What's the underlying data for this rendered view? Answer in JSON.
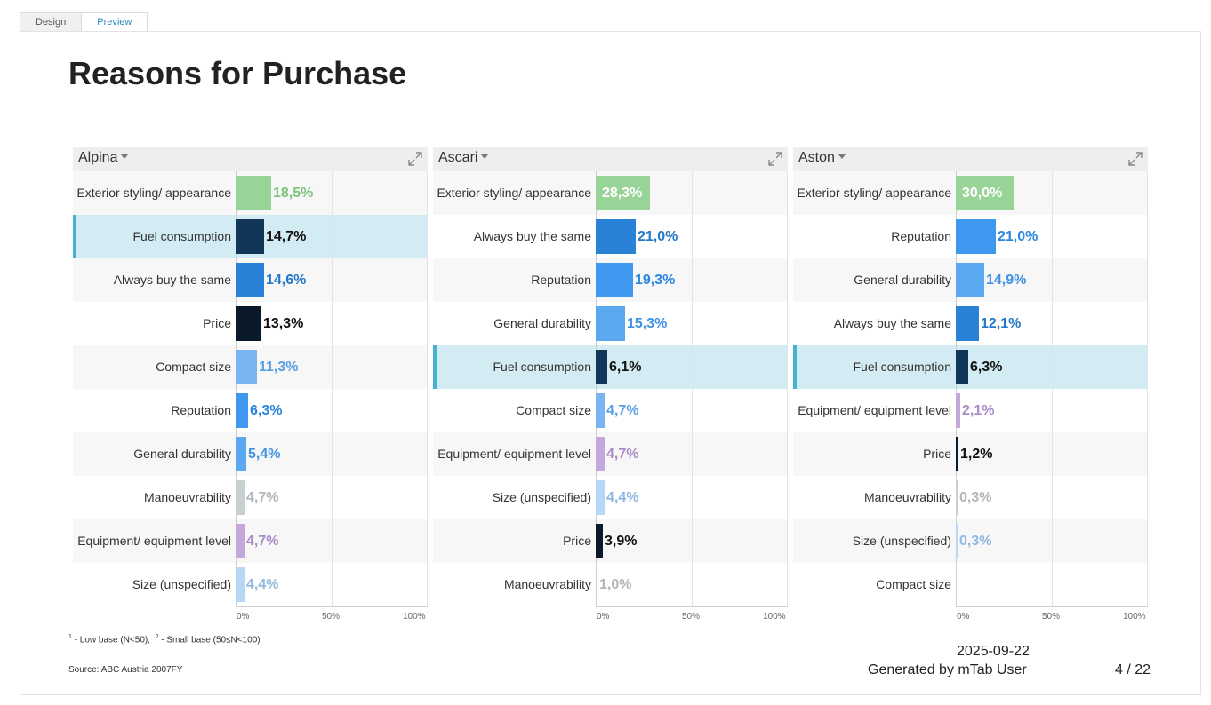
{
  "tabs": [
    {
      "label": "Design"
    },
    {
      "label": "Preview"
    }
  ],
  "page": {
    "title": "Reasons for Purchase",
    "footnote_1": "1",
    "footnote_1_text": " - Low base (N<50);",
    "footnote_2": "2",
    "footnote_2_text": " - Small base (50≤N<100)",
    "source": "Source: ABC Austria 2007FY",
    "date": "2025-09-22",
    "generated_by": "Generated by mTab User",
    "page_number": "4 / 22"
  },
  "chart_data": [
    {
      "type": "bar",
      "orientation": "horizontal",
      "title": "Alpina",
      "xlim": [
        0,
        100
      ],
      "x_ticks": [
        "0%",
        "50%",
        "100%"
      ],
      "highlighted_category": "Fuel consumption",
      "categories": [
        "Exterior styling/ appearance",
        "Fuel consumption",
        "Always buy the same",
        "Price",
        "Compact size",
        "Reputation",
        "General durability",
        "Manoeuvrability",
        "Equipment/ equipment level",
        "Size (unspecified)"
      ],
      "values": [
        18.5,
        14.7,
        14.6,
        13.3,
        11.3,
        6.3,
        5.4,
        4.7,
        4.7,
        4.4
      ],
      "labels": [
        "18,5%",
        "14,7%",
        "14,6%",
        "13,3%",
        "11,3%",
        "6,3%",
        "5,4%",
        "4,7%",
        "4,7%",
        "4,4%"
      ],
      "colors": [
        "#98d498",
        "#12365a",
        "#2a82d8",
        "#0a1a2a",
        "#79b5f1",
        "#3f98ef",
        "#5aa8f0",
        "#c8d0d4",
        "#c4a8dc",
        "#b7d7f6"
      ]
    },
    {
      "type": "bar",
      "orientation": "horizontal",
      "title": "Ascari",
      "xlim": [
        0,
        100
      ],
      "x_ticks": [
        "0%",
        "50%",
        "100%"
      ],
      "highlighted_category": "Fuel consumption",
      "categories": [
        "Exterior styling/ appearance",
        "Always buy the same",
        "Reputation",
        "General durability",
        "Fuel consumption",
        "Compact size",
        "Equipment/ equipment level",
        "Size (unspecified)",
        "Price",
        "Manoeuvrability"
      ],
      "values": [
        28.3,
        21.0,
        19.3,
        15.3,
        6.1,
        4.7,
        4.7,
        4.4,
        3.9,
        1.0
      ],
      "labels": [
        "28,3%",
        "21,0%",
        "19,3%",
        "15,3%",
        "6,1%",
        "4,7%",
        "4,7%",
        "4,4%",
        "3,9%",
        "1,0%"
      ],
      "colors": [
        "#98d498",
        "#2a82d8",
        "#3f98ef",
        "#5aa8f0",
        "#12365a",
        "#79b5f1",
        "#c4a8dc",
        "#b7d7f6",
        "#0a1a2a",
        "#c8d0d4"
      ]
    },
    {
      "type": "bar",
      "orientation": "horizontal",
      "title": "Aston",
      "xlim": [
        0,
        100
      ],
      "x_ticks": [
        "0%",
        "50%",
        "100%"
      ],
      "highlighted_category": "Fuel consumption",
      "categories": [
        "Exterior styling/ appearance",
        "Reputation",
        "General durability",
        "Always buy the same",
        "Fuel consumption",
        "Equipment/ equipment level",
        "Price",
        "Manoeuvrability",
        "Size (unspecified)",
        "Compact size"
      ],
      "values": [
        30.0,
        21.0,
        14.9,
        12.1,
        6.3,
        2.1,
        1.2,
        0.3,
        0.3,
        0.0
      ],
      "labels": [
        "30,0%",
        "21,0%",
        "14,9%",
        "12,1%",
        "6,3%",
        "2,1%",
        "1,2%",
        "0,3%",
        "0,3%",
        ""
      ],
      "colors": [
        "#98d498",
        "#3f98ef",
        "#5aa8f0",
        "#2a82d8",
        "#12365a",
        "#c4a8dc",
        "#0a1a2a",
        "#c8d0d4",
        "#b7d7f6",
        "#79b5f1"
      ]
    }
  ]
}
